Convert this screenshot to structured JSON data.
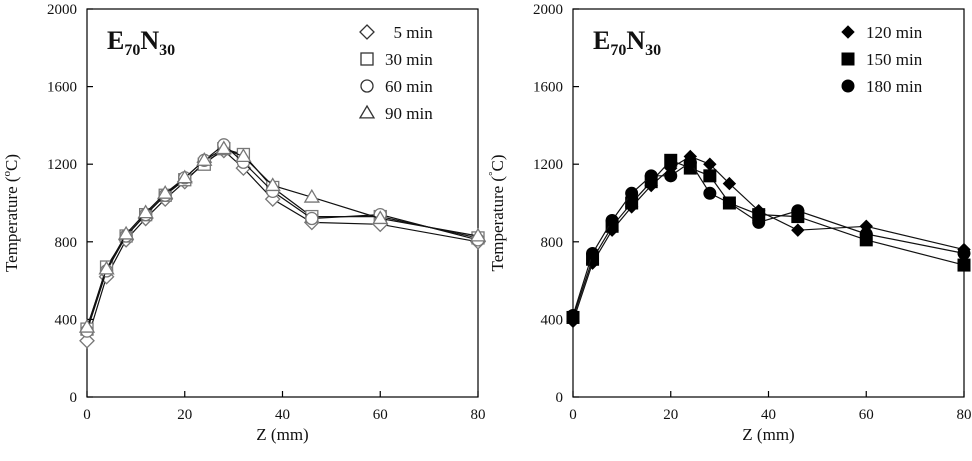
{
  "chart_data": [
    {
      "type": "line",
      "panel_label": {
        "main": "E",
        "sub1": "70",
        "mid": "N",
        "sub2": "30"
      },
      "xlabel": "Z (mm)",
      "ylabel": "Temperature (",
      "ylabel_sup": "o",
      "ylabel_unit": "C)",
      "xlim": [
        0,
        80
      ],
      "ylim": [
        0,
        2000
      ],
      "xticks": [
        "0",
        "20",
        "40",
        "60",
        "80"
      ],
      "yticks": [
        "0",
        "400",
        "800",
        "1200",
        "1600",
        "2000"
      ],
      "legend_position": "top-right",
      "marker_color": "#777777",
      "series": [
        {
          "name": "5 min",
          "marker": "diamond-open",
          "x": [
            0,
            4,
            8,
            12,
            16,
            20,
            24,
            28,
            32,
            38,
            46,
            60,
            80
          ],
          "y": [
            290,
            620,
            810,
            920,
            1020,
            1110,
            1210,
            1270,
            1180,
            1020,
            900,
            890,
            800
          ]
        },
        {
          "name": "30 min",
          "marker": "square-open",
          "x": [
            0,
            4,
            8,
            12,
            16,
            20,
            24,
            28,
            32,
            38,
            46,
            60,
            80
          ],
          "y": [
            350,
            670,
            830,
            940,
            1040,
            1120,
            1200,
            1280,
            1250,
            1080,
            930,
            930,
            820
          ]
        },
        {
          "name": "60 min",
          "marker": "circle-open",
          "x": [
            0,
            4,
            8,
            12,
            16,
            20,
            24,
            28,
            32,
            38,
            46,
            60,
            80
          ],
          "y": [
            340,
            650,
            830,
            940,
            1040,
            1130,
            1220,
            1300,
            1210,
            1060,
            920,
            940,
            810
          ]
        },
        {
          "name": "90 min",
          "marker": "triangle-open",
          "x": [
            0,
            4,
            8,
            12,
            16,
            20,
            24,
            28,
            32,
            38,
            46,
            60,
            80
          ],
          "y": [
            360,
            660,
            840,
            950,
            1050,
            1130,
            1220,
            1280,
            1240,
            1090,
            1030,
            920,
            830
          ]
        }
      ]
    },
    {
      "type": "line",
      "panel_label": {
        "main": "E",
        "sub1": "70",
        "mid": "N",
        "sub2": "30"
      },
      "xlabel": "Z (mm)",
      "ylabel": "Temperature (",
      "ylabel_sup": "°",
      "ylabel_unit": "C)",
      "xlim": [
        0,
        80
      ],
      "ylim": [
        0,
        2000
      ],
      "xticks": [
        "0",
        "20",
        "40",
        "60",
        "80"
      ],
      "yticks": [
        "0",
        "400",
        "800",
        "1200",
        "1600",
        "2000"
      ],
      "legend_position": "top-right",
      "marker_color": "#000000",
      "series": [
        {
          "name": "120 min",
          "marker": "diamond-filled",
          "x": [
            0,
            4,
            8,
            12,
            16,
            20,
            24,
            28,
            32,
            38,
            46,
            60,
            80
          ],
          "y": [
            390,
            690,
            860,
            980,
            1090,
            1180,
            1240,
            1200,
            1100,
            960,
            860,
            880,
            760
          ]
        },
        {
          "name": "150 min",
          "marker": "square-filled",
          "x": [
            0,
            4,
            8,
            12,
            16,
            20,
            24,
            28,
            32,
            38,
            46,
            60,
            80
          ],
          "y": [
            410,
            710,
            880,
            1000,
            1110,
            1220,
            1180,
            1140,
            1000,
            940,
            930,
            810,
            680
          ]
        },
        {
          "name": "180 min",
          "marker": "circle-filled",
          "x": [
            0,
            4,
            8,
            12,
            16,
            20,
            24,
            28,
            32,
            38,
            46,
            60,
            80
          ],
          "y": [
            420,
            740,
            910,
            1050,
            1140,
            1140,
            1210,
            1050,
            1000,
            900,
            960,
            840,
            740
          ]
        }
      ]
    }
  ]
}
